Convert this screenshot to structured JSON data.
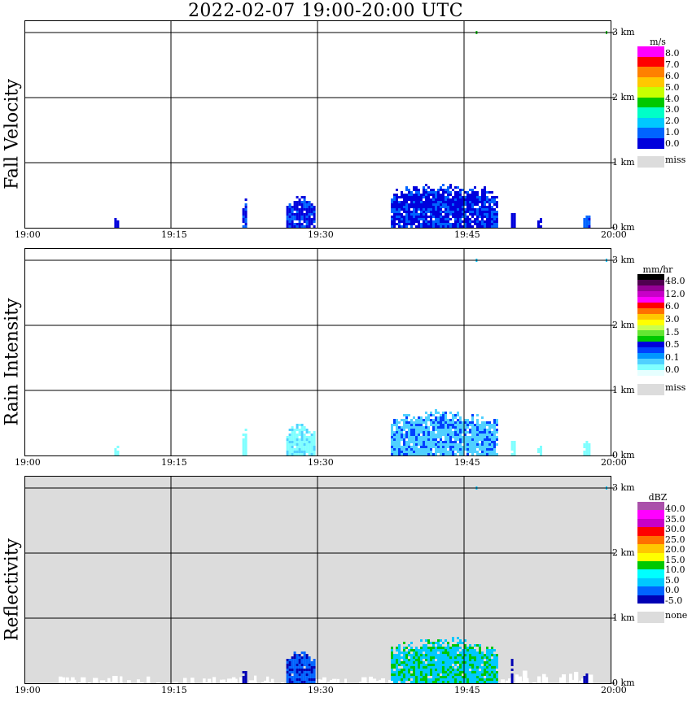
{
  "title": "2022-02-07   19:00-20:00 UTC",
  "time_ticks": [
    "19:00",
    "19:15",
    "19:30",
    "19:45",
    "20:00"
  ],
  "height_ticks": [
    "0 km",
    "1 km",
    "2 km",
    "3 km"
  ],
  "colors": {
    "grid": "#000000",
    "missing": "#dcdcdc"
  },
  "chart_data": [
    {
      "type": "heatmap",
      "ylabel": "Fall Velocity",
      "xlabel": "",
      "x_range": [
        "19:00",
        "20:00"
      ],
      "y_range_km": [
        0,
        3.2
      ],
      "background": "#ffffff",
      "colorbar": {
        "unit": "m/s",
        "labels": [
          "8.0",
          "7.0",
          "6.0",
          "5.0",
          "4.0",
          "3.0",
          "2.0",
          "1.0",
          "0.0"
        ],
        "colors": [
          "#ff00ff",
          "#ff0000",
          "#ff8000",
          "#ffc800",
          "#c8ff00",
          "#00c800",
          "#00ffc8",
          "#00c8ff",
          "#0064ff",
          "#0000dc"
        ],
        "missing_label": "miss"
      },
      "echoes": [
        {
          "t_start": 9.2,
          "t_end": 9.6,
          "top_km": 0.15,
          "color": "#0000dc",
          "accent": "#0000dc"
        },
        {
          "t_start": 22.3,
          "t_end": 22.8,
          "top_km": 0.45,
          "color": "#0000dc",
          "accent": "#0064ff"
        },
        {
          "t_start": 26.8,
          "t_end": 29.6,
          "top_km": 0.5,
          "color": "#0000dc",
          "accent": "#0064ff"
        },
        {
          "t_start": 37.5,
          "t_end": 48.5,
          "top_km": 0.7,
          "color": "#0000dc",
          "accent": "#0064ff"
        },
        {
          "t_start": 49.8,
          "t_end": 50.1,
          "top_km": 0.3,
          "color": "#0000dc",
          "accent": "#0000dc"
        },
        {
          "t_start": 52.5,
          "t_end": 52.9,
          "top_km": 0.15,
          "color": "#0000dc",
          "accent": "#0000dc"
        },
        {
          "t_start": 57.2,
          "t_end": 57.9,
          "top_km": 0.2,
          "color": "#0064ff",
          "accent": "#0000dc"
        }
      ]
    },
    {
      "type": "heatmap",
      "ylabel": "Rain Intensity",
      "xlabel": "",
      "x_range": [
        "19:00",
        "20:00"
      ],
      "y_range_km": [
        0,
        3.2
      ],
      "background": "#ffffff",
      "colorbar": {
        "unit": "mm/hr",
        "labels": [
          "48.0",
          "12.0",
          "6.0",
          "3.0",
          "1.5",
          "0.5",
          "0.1",
          "0.0"
        ],
        "colors": [
          "#000000",
          "#500050",
          "#960096",
          "#c800c8",
          "#ff00ff",
          "#ff0000",
          "#ff7000",
          "#ffc800",
          "#ffff00",
          "#c8ff50",
          "#64e632",
          "#00c800",
          "#0000dc",
          "#0040ff",
          "#0096ff",
          "#50d0ff",
          "#80ffff",
          "#e6ffff"
        ],
        "missing_label": "miss"
      },
      "echoes": [
        {
          "t_start": 9.2,
          "t_end": 9.6,
          "top_km": 0.15,
          "color": "#80ffff",
          "accent": "#80ffff"
        },
        {
          "t_start": 22.3,
          "t_end": 22.8,
          "top_km": 0.45,
          "color": "#80ffff",
          "accent": "#80ffff"
        },
        {
          "t_start": 26.8,
          "t_end": 29.6,
          "top_km": 0.5,
          "color": "#80ffff",
          "accent": "#50d0ff"
        },
        {
          "t_start": 37.5,
          "t_end": 48.5,
          "top_km": 0.7,
          "color": "#50d0ff",
          "accent": "#0040ff"
        },
        {
          "t_start": 49.8,
          "t_end": 50.1,
          "top_km": 0.3,
          "color": "#80ffff",
          "accent": "#80ffff"
        },
        {
          "t_start": 52.5,
          "t_end": 52.9,
          "top_km": 0.15,
          "color": "#80ffff",
          "accent": "#80ffff"
        },
        {
          "t_start": 57.2,
          "t_end": 57.9,
          "top_km": 0.2,
          "color": "#80ffff",
          "accent": "#80ffff"
        }
      ]
    },
    {
      "type": "heatmap",
      "ylabel": "Reflectivity",
      "xlabel": "",
      "x_range": [
        "19:00",
        "20:00"
      ],
      "y_range_km": [
        0,
        3.2
      ],
      "background": "#dcdcdc",
      "colorbar": {
        "unit": "dBZ",
        "labels": [
          "40.0",
          "35.0",
          "30.0",
          "25.0",
          "20.0",
          "15.0",
          "10.0",
          "5.0",
          "0.0",
          "-5.0"
        ],
        "colors": [
          "#aa50aa",
          "#ff00ff",
          "#c800c8",
          "#ff0000",
          "#ff7000",
          "#ffc800",
          "#ffff00",
          "#00c800",
          "#00ffff",
          "#00c8ff",
          "#0064ff",
          "#0000b4"
        ],
        "missing_label": "none"
      },
      "echoes": [
        {
          "t_start": 26.8,
          "t_end": 29.6,
          "top_km": 0.5,
          "color": "#0064ff",
          "accent": "#0000b4"
        },
        {
          "t_start": 37.5,
          "t_end": 48.5,
          "top_km": 0.7,
          "color": "#00c8ff",
          "accent": "#00c800"
        },
        {
          "t_start": 22.3,
          "t_end": 22.6,
          "top_km": 0.25,
          "color": "#0000b4",
          "accent": "#0000b4"
        },
        {
          "t_start": 57.2,
          "t_end": 57.6,
          "top_km": 0.15,
          "color": "#0000b4",
          "accent": "#0000b4"
        },
        {
          "t_start": 49.8,
          "t_end": 50.0,
          "top_km": 0.45,
          "color": "#0000b4",
          "accent": "#0000b4"
        }
      ],
      "no_echo_regions": [
        {
          "t_start": 3.5,
          "t_end": 37.5,
          "top_km": 0.12
        },
        {
          "t_start": 48.5,
          "t_end": 58.0,
          "top_km": 0.2
        }
      ]
    }
  ]
}
